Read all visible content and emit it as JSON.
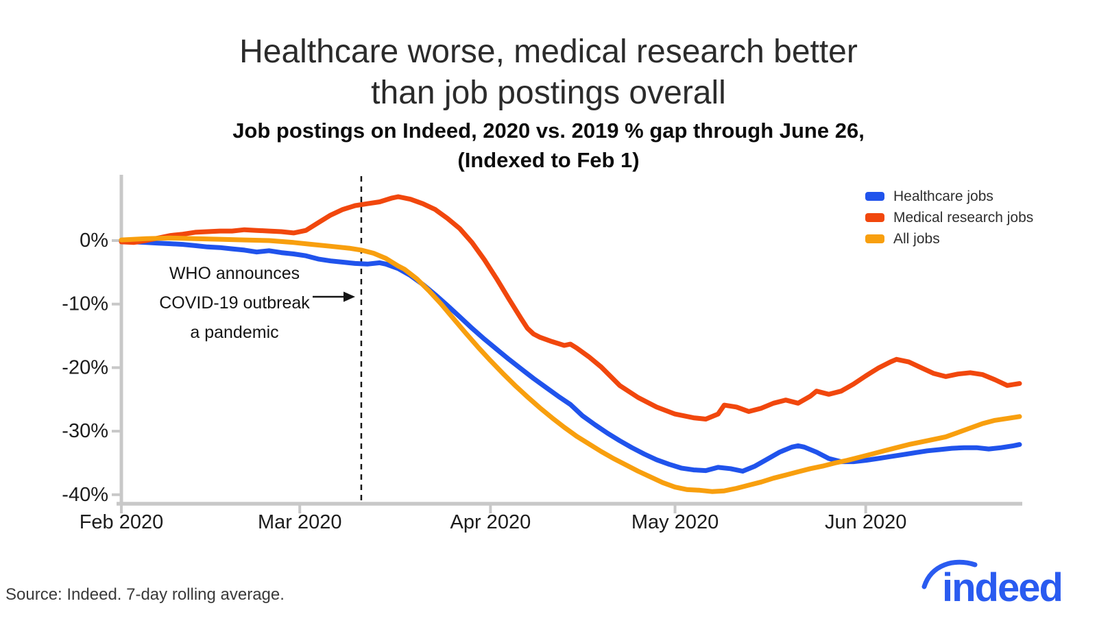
{
  "header": {
    "title_line1": "Healthcare worse, medical research better",
    "title_line2": "than job postings overall",
    "subtitle_line1": "Job postings on Indeed, 2020 vs. 2019 % gap through June 26,",
    "subtitle_line2": "(Indexed to Feb 1)"
  },
  "annotation": {
    "line1": "WHO announces",
    "line2": "COVID-19 outbreak",
    "line3": "a pandemic"
  },
  "footer": {
    "source": "Source: Indeed. 7-day rolling average.",
    "logo_text": "indeed",
    "logo_color": "#2a5bf0"
  },
  "chart_data": {
    "type": "line",
    "title": "Healthcare worse, medical research better than job postings overall",
    "subtitle": "Job postings on Indeed, 2020 vs. 2019 % gap through June 26, (Indexed to Feb 1)",
    "x_unit": "days since Feb 1, 2020",
    "x_domain": [
      0,
      146
    ],
    "y_domain": [
      -42,
      8
    ],
    "grid": false,
    "legend_position": "top-right",
    "axis_color": "#c8c8c8",
    "annotation_line_color": "#141414",
    "x_ticks": [
      {
        "day": 0,
        "label": "Feb 2020"
      },
      {
        "day": 29,
        "label": "Mar 2020"
      },
      {
        "day": 60,
        "label": "Apr 2020"
      },
      {
        "day": 90,
        "label": "May 2020"
      },
      {
        "day": 121,
        "label": "Jun 2020"
      }
    ],
    "y_ticks": [
      {
        "value": 0,
        "label": "0%"
      },
      {
        "value": -10,
        "label": "-10%"
      },
      {
        "value": -20,
        "label": "-20%"
      },
      {
        "value": -30,
        "label": "-30%"
      },
      {
        "value": -40,
        "label": "-40%"
      }
    ],
    "pandemic_line_day": 39,
    "series": [
      {
        "name": "Healthcare jobs",
        "color": "#2053ec",
        "points": [
          [
            0,
            0
          ],
          [
            2,
            -0.2
          ],
          [
            4,
            -0.3
          ],
          [
            6,
            -0.4
          ],
          [
            8,
            -0.5
          ],
          [
            10,
            -0.6
          ],
          [
            12,
            -0.8
          ],
          [
            14,
            -1.0
          ],
          [
            16,
            -1.1
          ],
          [
            18,
            -1.3
          ],
          [
            20,
            -1.5
          ],
          [
            22,
            -1.8
          ],
          [
            24,
            -1.6
          ],
          [
            26,
            -1.9
          ],
          [
            28,
            -2.1
          ],
          [
            30,
            -2.4
          ],
          [
            32,
            -2.9
          ],
          [
            34,
            -3.2
          ],
          [
            36,
            -3.4
          ],
          [
            38,
            -3.6
          ],
          [
            40,
            -3.7
          ],
          [
            42,
            -3.5
          ],
          [
            43,
            -3.7
          ],
          [
            45,
            -4.4
          ],
          [
            47,
            -5.5
          ],
          [
            49,
            -6.9
          ],
          [
            51,
            -8.5
          ],
          [
            53,
            -10.2
          ],
          [
            55,
            -12.0
          ],
          [
            57,
            -13.8
          ],
          [
            59,
            -15.5
          ],
          [
            61,
            -17.1
          ],
          [
            63,
            -18.7
          ],
          [
            65,
            -20.2
          ],
          [
            67,
            -21.7
          ],
          [
            69,
            -23.1
          ],
          [
            71,
            -24.5
          ],
          [
            73,
            -25.8
          ],
          [
            75,
            -27.6
          ],
          [
            77,
            -29.0
          ],
          [
            79,
            -30.3
          ],
          [
            81,
            -31.5
          ],
          [
            83,
            -32.6
          ],
          [
            85,
            -33.6
          ],
          [
            87,
            -34.5
          ],
          [
            89,
            -35.2
          ],
          [
            91,
            -35.8
          ],
          [
            93,
            -36.1
          ],
          [
            95,
            -36.2
          ],
          [
            97,
            -35.7
          ],
          [
            99,
            -35.9
          ],
          [
            101,
            -36.3
          ],
          [
            103,
            -35.5
          ],
          [
            105,
            -34.4
          ],
          [
            107,
            -33.3
          ],
          [
            109,
            -32.5
          ],
          [
            110,
            -32.3
          ],
          [
            111,
            -32.5
          ],
          [
            113,
            -33.3
          ],
          [
            115,
            -34.3
          ],
          [
            117,
            -34.8
          ],
          [
            119,
            -34.8
          ],
          [
            121,
            -34.6
          ],
          [
            123,
            -34.3
          ],
          [
            125,
            -34.0
          ],
          [
            127,
            -33.7
          ],
          [
            129,
            -33.4
          ],
          [
            131,
            -33.1
          ],
          [
            133,
            -32.9
          ],
          [
            135,
            -32.7
          ],
          [
            137,
            -32.6
          ],
          [
            139,
            -32.6
          ],
          [
            141,
            -32.8
          ],
          [
            143,
            -32.6
          ],
          [
            145,
            -32.3
          ],
          [
            146,
            -32.1
          ]
        ]
      },
      {
        "name": "Medical research jobs",
        "color": "#f1470d",
        "points": [
          [
            0,
            -0.2
          ],
          [
            2,
            -0.3
          ],
          [
            4,
            0.0
          ],
          [
            6,
            0.4
          ],
          [
            8,
            0.8
          ],
          [
            10,
            1.0
          ],
          [
            12,
            1.3
          ],
          [
            14,
            1.4
          ],
          [
            16,
            1.5
          ],
          [
            18,
            1.5
          ],
          [
            20,
            1.7
          ],
          [
            22,
            1.6
          ],
          [
            24,
            1.5
          ],
          [
            26,
            1.4
          ],
          [
            28,
            1.2
          ],
          [
            30,
            1.6
          ],
          [
            32,
            2.8
          ],
          [
            34,
            4.0
          ],
          [
            36,
            4.9
          ],
          [
            38,
            5.5
          ],
          [
            40,
            5.8
          ],
          [
            42,
            6.1
          ],
          [
            44,
            6.7
          ],
          [
            45,
            6.9
          ],
          [
            47,
            6.5
          ],
          [
            49,
            5.8
          ],
          [
            51,
            4.9
          ],
          [
            53,
            3.5
          ],
          [
            55,
            1.9
          ],
          [
            57,
            -0.3
          ],
          [
            59,
            -3.0
          ],
          [
            61,
            -6.0
          ],
          [
            63,
            -9.2
          ],
          [
            65,
            -12.3
          ],
          [
            66,
            -13.8
          ],
          [
            67,
            -14.7
          ],
          [
            68,
            -15.2
          ],
          [
            70,
            -15.9
          ],
          [
            72,
            -16.5
          ],
          [
            73,
            -16.3
          ],
          [
            74,
            -16.9
          ],
          [
            76,
            -18.3
          ],
          [
            78,
            -19.9
          ],
          [
            81,
            -22.8
          ],
          [
            84,
            -24.7
          ],
          [
            87,
            -26.2
          ],
          [
            90,
            -27.3
          ],
          [
            93,
            -27.9
          ],
          [
            95,
            -28.1
          ],
          [
            97,
            -27.3
          ],
          [
            98,
            -25.9
          ],
          [
            100,
            -26.2
          ],
          [
            102,
            -26.9
          ],
          [
            104,
            -26.4
          ],
          [
            106,
            -25.6
          ],
          [
            108,
            -25.1
          ],
          [
            110,
            -25.6
          ],
          [
            112,
            -24.5
          ],
          [
            113,
            -23.7
          ],
          [
            115,
            -24.2
          ],
          [
            117,
            -23.7
          ],
          [
            119,
            -22.6
          ],
          [
            121,
            -21.3
          ],
          [
            123,
            -20.1
          ],
          [
            125,
            -19.1
          ],
          [
            126,
            -18.7
          ],
          [
            128,
            -19.1
          ],
          [
            130,
            -20.0
          ],
          [
            132,
            -20.9
          ],
          [
            134,
            -21.4
          ],
          [
            136,
            -21.0
          ],
          [
            138,
            -20.8
          ],
          [
            140,
            -21.1
          ],
          [
            142,
            -21.9
          ],
          [
            144,
            -22.8
          ],
          [
            146,
            -22.5
          ]
        ]
      },
      {
        "name": "All jobs",
        "color": "#f89f0e",
        "points": [
          [
            0,
            0.1
          ],
          [
            4,
            0.3
          ],
          [
            8,
            0.4
          ],
          [
            12,
            0.3
          ],
          [
            16,
            0.2
          ],
          [
            20,
            0.1
          ],
          [
            24,
            0.0
          ],
          [
            28,
            -0.3
          ],
          [
            31,
            -0.6
          ],
          [
            34,
            -0.9
          ],
          [
            37,
            -1.2
          ],
          [
            39,
            -1.5
          ],
          [
            41,
            -2.0
          ],
          [
            43,
            -2.8
          ],
          [
            45,
            -4.0
          ],
          [
            46,
            -4.5
          ],
          [
            48,
            -6.0
          ],
          [
            50,
            -7.9
          ],
          [
            52,
            -10.0
          ],
          [
            54,
            -12.3
          ],
          [
            56,
            -14.6
          ],
          [
            58,
            -16.8
          ],
          [
            60,
            -18.9
          ],
          [
            62,
            -20.9
          ],
          [
            64,
            -22.8
          ],
          [
            66,
            -24.6
          ],
          [
            68,
            -26.3
          ],
          [
            70,
            -27.9
          ],
          [
            72,
            -29.4
          ],
          [
            74,
            -30.8
          ],
          [
            76,
            -32.0
          ],
          [
            78,
            -33.2
          ],
          [
            80,
            -34.3
          ],
          [
            82,
            -35.3
          ],
          [
            84,
            -36.3
          ],
          [
            86,
            -37.2
          ],
          [
            88,
            -38.1
          ],
          [
            90,
            -38.8
          ],
          [
            92,
            -39.2
          ],
          [
            94,
            -39.3
          ],
          [
            96,
            -39.5
          ],
          [
            98,
            -39.4
          ],
          [
            100,
            -39.0
          ],
          [
            102,
            -38.5
          ],
          [
            104,
            -38.0
          ],
          [
            106,
            -37.4
          ],
          [
            108,
            -36.9
          ],
          [
            110,
            -36.4
          ],
          [
            112,
            -35.9
          ],
          [
            114,
            -35.5
          ],
          [
            116,
            -35.0
          ],
          [
            118,
            -34.6
          ],
          [
            120,
            -34.1
          ],
          [
            122,
            -33.6
          ],
          [
            124,
            -33.1
          ],
          [
            126,
            -32.6
          ],
          [
            128,
            -32.1
          ],
          [
            130,
            -31.7
          ],
          [
            132,
            -31.3
          ],
          [
            134,
            -30.9
          ],
          [
            136,
            -30.2
          ],
          [
            138,
            -29.5
          ],
          [
            140,
            -28.8
          ],
          [
            142,
            -28.3
          ],
          [
            144,
            -28.0
          ],
          [
            146,
            -27.7
          ]
        ]
      }
    ]
  }
}
